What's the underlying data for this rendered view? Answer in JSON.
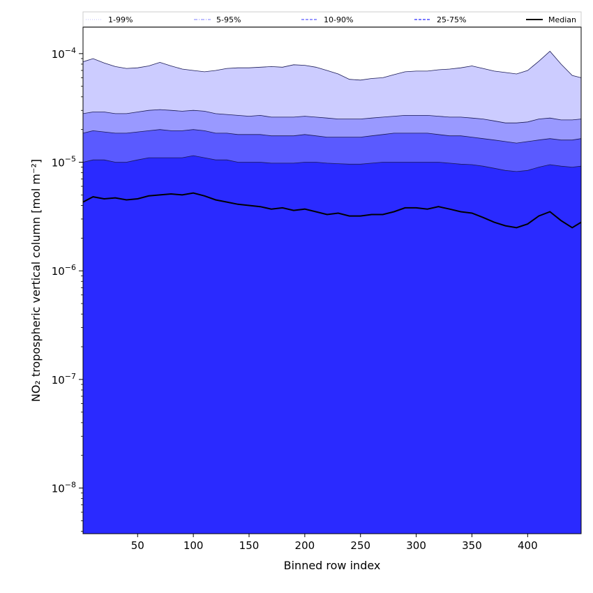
{
  "chart_data": {
    "type": "area",
    "title": "",
    "xlabel": "Binned row index",
    "ylabel": "NO₂ tropospheric vertical column [mol m⁻²]",
    "xlim": [
      1,
      448
    ],
    "ylim": [
      3.8e-09,
      0.000175
    ],
    "y_scale": "log",
    "x_ticks": [
      50,
      100,
      150,
      200,
      250,
      300,
      350,
      400
    ],
    "y_ticks": [
      {
        "value": 1e-08,
        "base": "10",
        "exp": "−8"
      },
      {
        "value": 1e-07,
        "base": "10",
        "exp": "−7"
      },
      {
        "value": 1e-06,
        "base": "10",
        "exp": "−6"
      },
      {
        "value": 1e-05,
        "base": "10",
        "exp": "−5"
      },
      {
        "value": 0.0001,
        "base": "10",
        "exp": "−4"
      }
    ],
    "grid": false,
    "legend_position": "top",
    "legend": [
      {
        "label": "1-99%",
        "color": "#ccccff",
        "style": "dotted"
      },
      {
        "label": "5-95%",
        "color": "#9999ff",
        "style": "dashdot"
      },
      {
        "label": "10-90%",
        "color": "#5a5aff",
        "style": "dashed"
      },
      {
        "label": "25-75%",
        "color": "#2a2aff",
        "style": "dashed"
      },
      {
        "label": "Median",
        "color": "#000000",
        "style": "solid"
      }
    ],
    "x": [
      1,
      10,
      20,
      30,
      40,
      50,
      60,
      70,
      80,
      90,
      100,
      110,
      120,
      130,
      140,
      150,
      160,
      170,
      180,
      190,
      200,
      210,
      220,
      230,
      240,
      250,
      260,
      270,
      280,
      290,
      300,
      310,
      320,
      330,
      340,
      350,
      360,
      370,
      380,
      390,
      400,
      410,
      420,
      430,
      440,
      448
    ],
    "series": [
      {
        "name": "1-99%",
        "color": "#ccccff",
        "upper": [
          8.4e-05,
          9e-05,
          8.2e-05,
          7.6e-05,
          7.3e-05,
          7.4e-05,
          7.7e-05,
          8.3e-05,
          7.7e-05,
          7.2e-05,
          7e-05,
          6.8e-05,
          7e-05,
          7.3e-05,
          7.4e-05,
          7.4e-05,
          7.5e-05,
          7.6e-05,
          7.5e-05,
          7.9e-05,
          7.8e-05,
          7.5e-05,
          7e-05,
          6.5e-05,
          5.8e-05,
          5.7e-05,
          5.9e-05,
          6e-05,
          6.4e-05,
          6.8e-05,
          6.9e-05,
          6.9e-05,
          7.1e-05,
          7.2e-05,
          7.4e-05,
          7.7e-05,
          7.3e-05,
          6.9e-05,
          6.7e-05,
          6.5e-05,
          7e-05,
          8.5e-05,
          0.000105,
          8e-05,
          6.3e-05,
          6e-05
        ],
        "lower": [
          3.8e-09,
          3.8e-09,
          3.8e-09,
          3.8e-09,
          3.8e-09,
          3.8e-09,
          3.8e-09,
          3.8e-09,
          3.8e-09,
          3.8e-09,
          3.8e-09,
          3.8e-09,
          3.8e-09,
          3.8e-09,
          3.8e-09,
          3.8e-09,
          3.8e-09,
          3.8e-09,
          3.8e-09,
          3.8e-09,
          3.8e-09,
          3.8e-09,
          3.8e-09,
          3.8e-09,
          3.8e-09,
          3.8e-09,
          3.8e-09,
          3.8e-09,
          3.8e-09,
          3.8e-09,
          3.8e-09,
          3.8e-09,
          3.8e-09,
          3.8e-09,
          3.8e-09,
          3.8e-09,
          3.8e-09,
          3.8e-09,
          3.8e-09,
          3.8e-09,
          3.8e-09,
          3.8e-09,
          3.8e-09,
          3.8e-09,
          3.8e-09,
          3.8e-09
        ]
      },
      {
        "name": "5-95%",
        "color": "#9999ff",
        "upper": [
          2.8e-05,
          2.9e-05,
          2.9e-05,
          2.8e-05,
          2.8e-05,
          2.9e-05,
          3e-05,
          3.05e-05,
          3e-05,
          2.95e-05,
          3e-05,
          2.95e-05,
          2.8e-05,
          2.75e-05,
          2.7e-05,
          2.65e-05,
          2.7e-05,
          2.6e-05,
          2.6e-05,
          2.6e-05,
          2.65e-05,
          2.6e-05,
          2.55e-05,
          2.5e-05,
          2.5e-05,
          2.5e-05,
          2.55e-05,
          2.6e-05,
          2.65e-05,
          2.7e-05,
          2.7e-05,
          2.7e-05,
          2.65e-05,
          2.6e-05,
          2.6e-05,
          2.55e-05,
          2.5e-05,
          2.4e-05,
          2.3e-05,
          2.3e-05,
          2.35e-05,
          2.5e-05,
          2.55e-05,
          2.45e-05,
          2.45e-05,
          2.5e-05
        ],
        "lower": [
          5.5e-07,
          8e-07,
          6.5e-07,
          7e-07,
          4.5e-07,
          6.5e-07,
          8.5e-07,
          8e-07,
          9e-07,
          7e-07,
          8e-07,
          5e-07,
          4e-08,
          3.8e-09,
          3.8e-09,
          3.8e-09,
          3.8e-09,
          3.8e-09,
          3.8e-09,
          3.8e-09,
          3.8e-09,
          3.8e-09,
          3.8e-09,
          3.8e-09,
          3.8e-09,
          3.8e-09,
          3.8e-09,
          3.8e-09,
          3.8e-09,
          3.8e-09,
          3.8e-09,
          3.8e-09,
          3.8e-09,
          3.8e-09,
          3.8e-09,
          3.8e-09,
          3.8e-09,
          3.8e-09,
          3.8e-09,
          3.8e-09,
          3.8e-09,
          3.8e-09,
          3.8e-09,
          3.8e-09,
          3.8e-09,
          3.8e-09
        ]
      },
      {
        "name": "10-90%",
        "color": "#5a5aff",
        "upper": [
          1.85e-05,
          1.95e-05,
          1.9e-05,
          1.85e-05,
          1.85e-05,
          1.9e-05,
          1.95e-05,
          2e-05,
          1.95e-05,
          1.95e-05,
          2e-05,
          1.95e-05,
          1.85e-05,
          1.85e-05,
          1.8e-05,
          1.8e-05,
          1.8e-05,
          1.75e-05,
          1.75e-05,
          1.75e-05,
          1.8e-05,
          1.75e-05,
          1.7e-05,
          1.7e-05,
          1.7e-05,
          1.7e-05,
          1.75e-05,
          1.8e-05,
          1.85e-05,
          1.85e-05,
          1.85e-05,
          1.85e-05,
          1.8e-05,
          1.75e-05,
          1.75e-05,
          1.7e-05,
          1.65e-05,
          1.6e-05,
          1.55e-05,
          1.5e-05,
          1.55e-05,
          1.6e-05,
          1.65e-05,
          1.6e-05,
          1.6e-05,
          1.65e-05
        ],
        "lower": [
          3.8e-09,
          3.8e-09,
          3.8e-09,
          3.8e-09,
          3.8e-09,
          3.8e-09,
          3.8e-09,
          3.8e-09,
          3.8e-09,
          3.8e-09,
          3.8e-09,
          3.8e-09,
          3.8e-09,
          3.8e-09,
          3.8e-09,
          3.8e-09,
          3.8e-09,
          3.8e-09,
          3.8e-09,
          3.8e-09,
          3.8e-09,
          3.8e-09,
          3.8e-09,
          3.8e-09,
          3.8e-09,
          3.8e-09,
          3.8e-09,
          3.8e-09,
          3.8e-09,
          3.8e-09,
          3.8e-09,
          3.8e-09,
          3.8e-09,
          3.8e-09,
          3.8e-09,
          3.8e-09,
          3.8e-09,
          3.8e-09,
          3.8e-09,
          3.8e-09,
          3.8e-09,
          3.8e-09,
          3.8e-09,
          3.8e-09,
          3.8e-09,
          3.8e-09
        ]
      },
      {
        "name": "25-75%",
        "color": "#2a2aff",
        "upper": [
          1e-05,
          1.05e-05,
          1.05e-05,
          1e-05,
          1e-05,
          1.05e-05,
          1.1e-05,
          1.1e-05,
          1.1e-05,
          1.1e-05,
          1.15e-05,
          1.1e-05,
          1.05e-05,
          1.05e-05,
          1e-05,
          1e-05,
          1e-05,
          9.8e-06,
          9.8e-06,
          9.8e-06,
          1e-05,
          1e-05,
          9.8e-06,
          9.7e-06,
          9.6e-06,
          9.6e-06,
          9.8e-06,
          1e-05,
          1e-05,
          1e-05,
          1e-05,
          1e-05,
          1e-05,
          9.8e-06,
          9.6e-06,
          9.5e-06,
          9.2e-06,
          8.8e-06,
          8.4e-06,
          8.2e-06,
          8.4e-06,
          9e-06,
          9.5e-06,
          9.2e-06,
          9e-06,
          9.2e-06
        ],
        "lower": [
          3.8e-09,
          3.8e-09,
          3.8e-09,
          3.8e-09,
          3.8e-09,
          3.8e-09,
          3.8e-09,
          3.8e-09,
          3.8e-09,
          3.8e-09,
          3.8e-09,
          3.8e-09,
          3.8e-09,
          3.8e-09,
          3.8e-09,
          3.8e-09,
          3.8e-09,
          3.8e-09,
          3.8e-09,
          3.8e-09,
          3.8e-09,
          3.8e-09,
          3.8e-09,
          3.8e-09,
          3.8e-09,
          3.8e-09,
          3.8e-09,
          3.8e-09,
          3.8e-09,
          3.8e-09,
          3.8e-09,
          3.8e-09,
          3.8e-09,
          3.8e-09,
          3.8e-09,
          3.8e-09,
          3.8e-09,
          3.8e-09,
          3.8e-09,
          3.8e-09,
          3.8e-09,
          3.8e-09,
          3.8e-09,
          3.8e-09,
          3.8e-09,
          3.8e-09
        ]
      },
      {
        "name": "Median",
        "color": "#000000",
        "values": [
          4.3e-06,
          4.8e-06,
          4.6e-06,
          4.7e-06,
          4.5e-06,
          4.6e-06,
          4.9e-06,
          5e-06,
          5.1e-06,
          5e-06,
          5.2e-06,
          4.9e-06,
          4.5e-06,
          4.3e-06,
          4.1e-06,
          4e-06,
          3.9e-06,
          3.7e-06,
          3.8e-06,
          3.6e-06,
          3.7e-06,
          3.5e-06,
          3.3e-06,
          3.4e-06,
          3.2e-06,
          3.2e-06,
          3.3e-06,
          3.3e-06,
          3.5e-06,
          3.8e-06,
          3.8e-06,
          3.7e-06,
          3.9e-06,
          3.7e-06,
          3.5e-06,
          3.4e-06,
          3.1e-06,
          2.8e-06,
          2.6e-06,
          2.5e-06,
          2.7e-06,
          3.2e-06,
          3.5e-06,
          2.9e-06,
          2.5e-06,
          2.8e-06
        ]
      }
    ]
  }
}
